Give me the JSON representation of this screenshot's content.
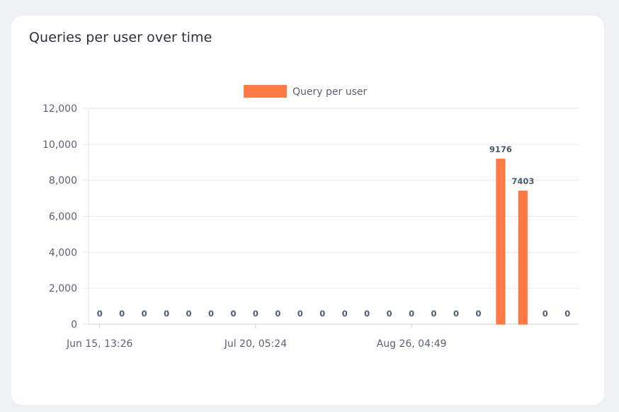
{
  "card": {
    "title": "Queries per user over time"
  },
  "chart_data": {
    "type": "bar",
    "title": "",
    "xlabel": "",
    "ylabel": "",
    "ylim": [
      0,
      12000
    ],
    "yticks": [
      "0",
      "2,000",
      "4,000",
      "6,000",
      "8,000",
      "10,000",
      "12,000"
    ],
    "xtick_labels": [
      "Jun 15, 13:26",
      "Jul 20, 05:24",
      "Aug 26, 04:49"
    ],
    "legend": {
      "placement": "top-center"
    },
    "grid": true,
    "series": [
      {
        "name": "Query per user",
        "color": "#ff7a45",
        "values": [
          0,
          0,
          0,
          0,
          0,
          0,
          0,
          0,
          0,
          0,
          0,
          0,
          0,
          0,
          0,
          0,
          0,
          0,
          9176,
          7403,
          0,
          0
        ],
        "labels": [
          "0",
          "0",
          "0",
          "0",
          "0",
          "0",
          "0",
          "0",
          "0",
          "0",
          "0",
          "0",
          "0",
          "0",
          "0",
          "0",
          "0",
          "0",
          "9176",
          "7403",
          "0",
          "0"
        ]
      }
    ]
  }
}
